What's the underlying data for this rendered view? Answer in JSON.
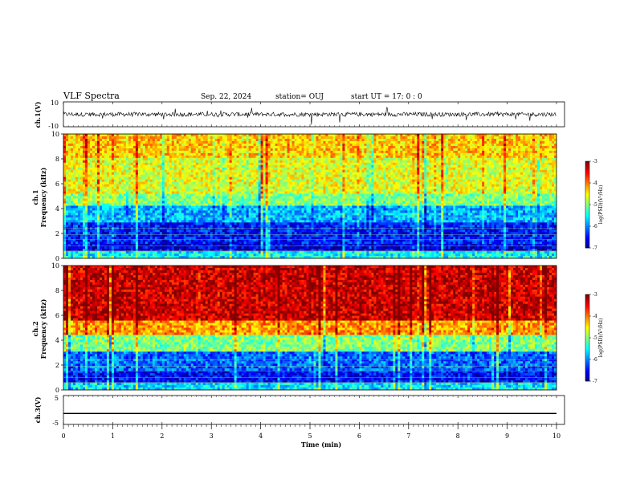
{
  "header": {
    "title": "VLF Spectra",
    "date": "Sep. 22, 2024",
    "station": "station= OUJ",
    "start": "start  UT =   17: 0  : 0"
  },
  "chart_data": [
    {
      "type": "line",
      "panel": "ch1-waveform",
      "ylabel": "ch.1(V)",
      "ylim": [
        -10,
        10
      ],
      "yticks": [
        "10",
        "-10"
      ],
      "xlim": [
        0,
        10
      ],
      "series": [
        {
          "description_shown": "noisy waveform around 0 V",
          "approx_amplitude": 4
        }
      ]
    },
    {
      "type": "heatmap",
      "panel": "ch1-spectrogram",
      "ylabel_top": "ch.1",
      "ylabel": "Frequency (kHz)",
      "ylim": [
        0,
        10
      ],
      "yticks": [
        "0",
        "2",
        "4",
        "6",
        "8",
        "10"
      ],
      "xlim": [
        0,
        10
      ],
      "colorbar": {
        "ticks": [
          "-3",
          "-4",
          "-5",
          "-6",
          "-7"
        ],
        "label": "log(PSD)(V²/Hz)",
        "range": [
          -7,
          -3
        ]
      },
      "bands": [
        {
          "from_khz": 0,
          "to_khz": 0.5,
          "level": -5.5
        },
        {
          "from_khz": 0.5,
          "to_khz": 1.2,
          "level": -6.6
        },
        {
          "from_khz": 1.2,
          "to_khz": 2.8,
          "level": -6.4
        },
        {
          "from_khz": 2.8,
          "to_khz": 4.2,
          "level": -5.8
        },
        {
          "from_khz": 4.2,
          "to_khz": 5.2,
          "level": -5.0
        },
        {
          "from_khz": 5.2,
          "to_khz": 8.0,
          "level": -4.6
        },
        {
          "from_khz": 8.0,
          "to_khz": 10,
          "level": -4.3
        }
      ]
    },
    {
      "type": "heatmap",
      "panel": "ch2-spectrogram",
      "ylabel_top": "ch.2",
      "ylabel": "Frequency (kHz)",
      "ylim": [
        0,
        10
      ],
      "yticks": [
        "0",
        "2",
        "4",
        "6",
        "8",
        "10"
      ],
      "xlim": [
        0,
        10
      ],
      "colorbar": {
        "ticks": [
          "-3",
          "-4",
          "-5",
          "-6",
          "-7"
        ],
        "label": "log(PSD)(V²/Hz)",
        "range": [
          -7,
          -3
        ]
      },
      "bands": [
        {
          "from_khz": 0,
          "to_khz": 0.6,
          "level": -5.6
        },
        {
          "from_khz": 0.6,
          "to_khz": 1.5,
          "level": -6.5
        },
        {
          "from_khz": 1.5,
          "to_khz": 3.0,
          "level": -6.1
        },
        {
          "from_khz": 3.0,
          "to_khz": 4.5,
          "level": -5.0
        },
        {
          "from_khz": 4.5,
          "to_khz": 5.5,
          "level": -4.1
        },
        {
          "from_khz": 5.5,
          "to_khz": 10,
          "level": -3.3
        }
      ]
    },
    {
      "type": "line",
      "panel": "ch3-waveform",
      "ylabel": "ch.3(V)",
      "ylim": [
        -5,
        5
      ],
      "yticks": [
        "5",
        "-5"
      ],
      "xlim": [
        0,
        10
      ],
      "xlabel": "Time  (min)",
      "xticks": [
        "0",
        "1",
        "2",
        "3",
        "4",
        "5",
        "6",
        "7",
        "8",
        "9",
        "10"
      ],
      "series": [
        {
          "values_constant": -1.2
        }
      ]
    }
  ]
}
